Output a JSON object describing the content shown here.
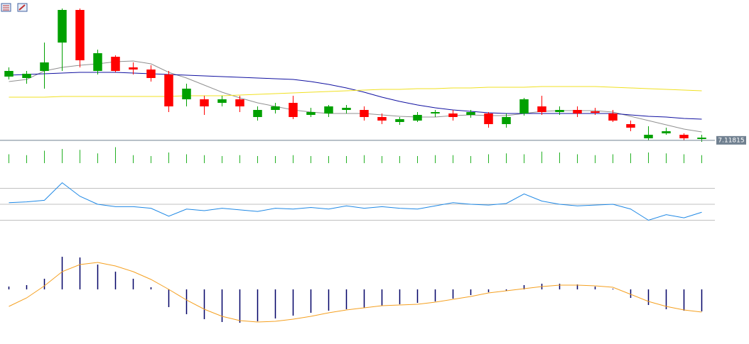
{
  "chart_data": [
    {
      "type": "candlestick",
      "ylim": [
        7.116,
        7.316
      ],
      "up_color": "#00a000",
      "down_color": "#ff0000",
      "price_line": 7.11815,
      "price_line_color": "#708090",
      "open": [
        7.208,
        7.206,
        7.216,
        7.256,
        7.302,
        7.216,
        7.236,
        7.221,
        7.218,
        7.211,
        7.176,
        7.176,
        7.171,
        7.176,
        7.151,
        7.161,
        7.171,
        7.154,
        7.156,
        7.161,
        7.161,
        7.151,
        7.144,
        7.146,
        7.156,
        7.156,
        7.154,
        7.156,
        7.141,
        7.156,
        7.166,
        7.158,
        7.161,
        7.159,
        7.156,
        7.141,
        7.121,
        7.128,
        7.126,
        7.12
      ],
      "high": [
        7.221,
        7.216,
        7.256,
        7.304,
        7.304,
        7.246,
        7.238,
        7.228,
        7.224,
        7.216,
        7.198,
        7.181,
        7.181,
        7.181,
        7.166,
        7.171,
        7.181,
        7.164,
        7.168,
        7.168,
        7.166,
        7.156,
        7.151,
        7.158,
        7.161,
        7.161,
        7.161,
        7.158,
        7.156,
        7.178,
        7.181,
        7.166,
        7.166,
        7.164,
        7.161,
        7.146,
        7.138,
        7.136,
        7.128,
        7.126
      ],
      "low": [
        7.204,
        7.198,
        7.191,
        7.216,
        7.221,
        7.211,
        7.214,
        7.211,
        7.201,
        7.158,
        7.166,
        7.154,
        7.166,
        7.158,
        7.146,
        7.156,
        7.148,
        7.151,
        7.151,
        7.156,
        7.146,
        7.141,
        7.14,
        7.144,
        7.151,
        7.146,
        7.15,
        7.136,
        7.136,
        7.153,
        7.154,
        7.154,
        7.151,
        7.154,
        7.144,
        7.131,
        7.118,
        7.126,
        7.118,
        7.116
      ],
      "close": [
        7.216,
        7.212,
        7.228,
        7.302,
        7.231,
        7.241,
        7.216,
        7.218,
        7.206,
        7.166,
        7.191,
        7.166,
        7.176,
        7.166,
        7.161,
        7.166,
        7.151,
        7.158,
        7.166,
        7.164,
        7.151,
        7.146,
        7.148,
        7.154,
        7.158,
        7.151,
        7.158,
        7.141,
        7.151,
        7.176,
        7.158,
        7.161,
        7.156,
        7.157,
        7.146,
        7.136,
        7.126,
        7.131,
        7.121,
        7.122
      ],
      "series": [
        {
          "color": "#909090",
          "values": [
            7.201,
            7.204,
            7.216,
            7.221,
            7.224,
            7.226,
            7.229,
            7.23,
            7.226,
            7.214,
            7.206,
            7.196,
            7.186,
            7.178,
            7.171,
            7.166,
            7.161,
            7.158,
            7.156,
            7.156,
            7.156,
            7.154,
            7.152,
            7.151,
            7.151,
            7.153,
            7.154,
            7.153,
            7.153,
            7.156,
            7.159,
            7.16,
            7.16,
            7.16,
            7.158,
            7.152,
            7.146,
            7.14,
            7.134,
            7.13
          ]
        },
        {
          "color": "#1010a0",
          "values": [
            7.21,
            7.211,
            7.212,
            7.213,
            7.214,
            7.214,
            7.214,
            7.213,
            7.212,
            7.211,
            7.21,
            7.209,
            7.208,
            7.207,
            7.206,
            7.205,
            7.204,
            7.201,
            7.197,
            7.192,
            7.186,
            7.179,
            7.173,
            7.168,
            7.164,
            7.161,
            7.159,
            7.157,
            7.156,
            7.156,
            7.156,
            7.156,
            7.156,
            7.156,
            7.156,
            7.154,
            7.152,
            7.151,
            7.149,
            7.148
          ]
        },
        {
          "color": "#f0e020",
          "values": [
            7.179,
            7.179,
            7.179,
            7.18,
            7.18,
            7.18,
            7.18,
            7.18,
            7.18,
            7.18,
            7.181,
            7.181,
            7.181,
            7.182,
            7.183,
            7.184,
            7.185,
            7.186,
            7.187,
            7.188,
            7.189,
            7.19,
            7.19,
            7.191,
            7.191,
            7.192,
            7.192,
            7.193,
            7.193,
            7.193,
            7.194,
            7.194,
            7.194,
            7.194,
            7.193,
            7.192,
            7.191,
            7.19,
            7.189,
            7.188
          ]
        }
      ]
    },
    {
      "type": "bar",
      "ylim": [
        0,
        1000
      ],
      "color": "#22b022",
      "values": [
        500,
        450,
        700,
        800,
        750,
        550,
        900,
        450,
        400,
        600,
        500,
        450,
        400,
        450,
        400,
        400,
        450,
        400,
        400,
        400,
        450,
        400,
        400,
        400,
        450,
        450,
        400,
        500,
        550,
        500,
        650,
        600,
        500,
        450,
        500,
        550,
        600,
        550,
        500,
        450
      ]
    },
    {
      "type": "line",
      "ylim": [
        10,
        90
      ],
      "yticks": [
        30,
        50,
        70
      ],
      "grid": true,
      "color": "#1e88e5",
      "values": [
        52,
        53,
        55,
        77,
        60,
        50,
        47,
        47,
        45,
        35,
        44,
        42,
        45,
        43,
        41,
        45,
        44,
        46,
        44,
        48,
        45,
        47,
        45,
        44,
        48,
        52,
        50,
        49,
        51,
        63,
        54,
        50,
        48,
        49,
        50,
        44,
        30,
        37,
        33,
        40
      ]
    },
    {
      "type": "macd",
      "ylim": [
        -0.0077,
        0.0068
      ],
      "histogram": {
        "color": "#000066",
        "values": [
          0.0004,
          0.0006,
          0.0015,
          0.0046,
          0.0045,
          0.0035,
          0.0025,
          0.0015,
          0.0003,
          -0.0025,
          -0.0035,
          -0.0042,
          -0.0046,
          -0.0047,
          -0.0045,
          -0.0041,
          -0.0037,
          -0.0033,
          -0.003,
          -0.0028,
          -0.0026,
          -0.0023,
          -0.0021,
          -0.0019,
          -0.0017,
          -0.0013,
          -0.0008,
          -0.0004,
          -0.0002,
          0.0006,
          0.0008,
          0.0008,
          0.0007,
          0.0004,
          0.0001,
          -0.0012,
          -0.0022,
          -0.0028,
          -0.003,
          -0.0031
        ]
      },
      "signal": {
        "color": "#f5a020",
        "values": [
          -0.0024,
          -0.0012,
          0.0005,
          0.0025,
          0.0035,
          0.0038,
          0.0033,
          0.0025,
          0.0014,
          0.0,
          -0.0015,
          -0.0028,
          -0.0038,
          -0.0044,
          -0.0046,
          -0.0045,
          -0.0042,
          -0.0038,
          -0.0033,
          -0.0029,
          -0.0026,
          -0.0023,
          -0.0022,
          -0.0021,
          -0.0018,
          -0.0014,
          -0.001,
          -0.0005,
          -0.0002,
          0.0001,
          0.0004,
          0.0006,
          0.0006,
          0.0005,
          0.0003,
          -0.0007,
          -0.0017,
          -0.0024,
          -0.0029,
          -0.0032
        ]
      }
    }
  ]
}
